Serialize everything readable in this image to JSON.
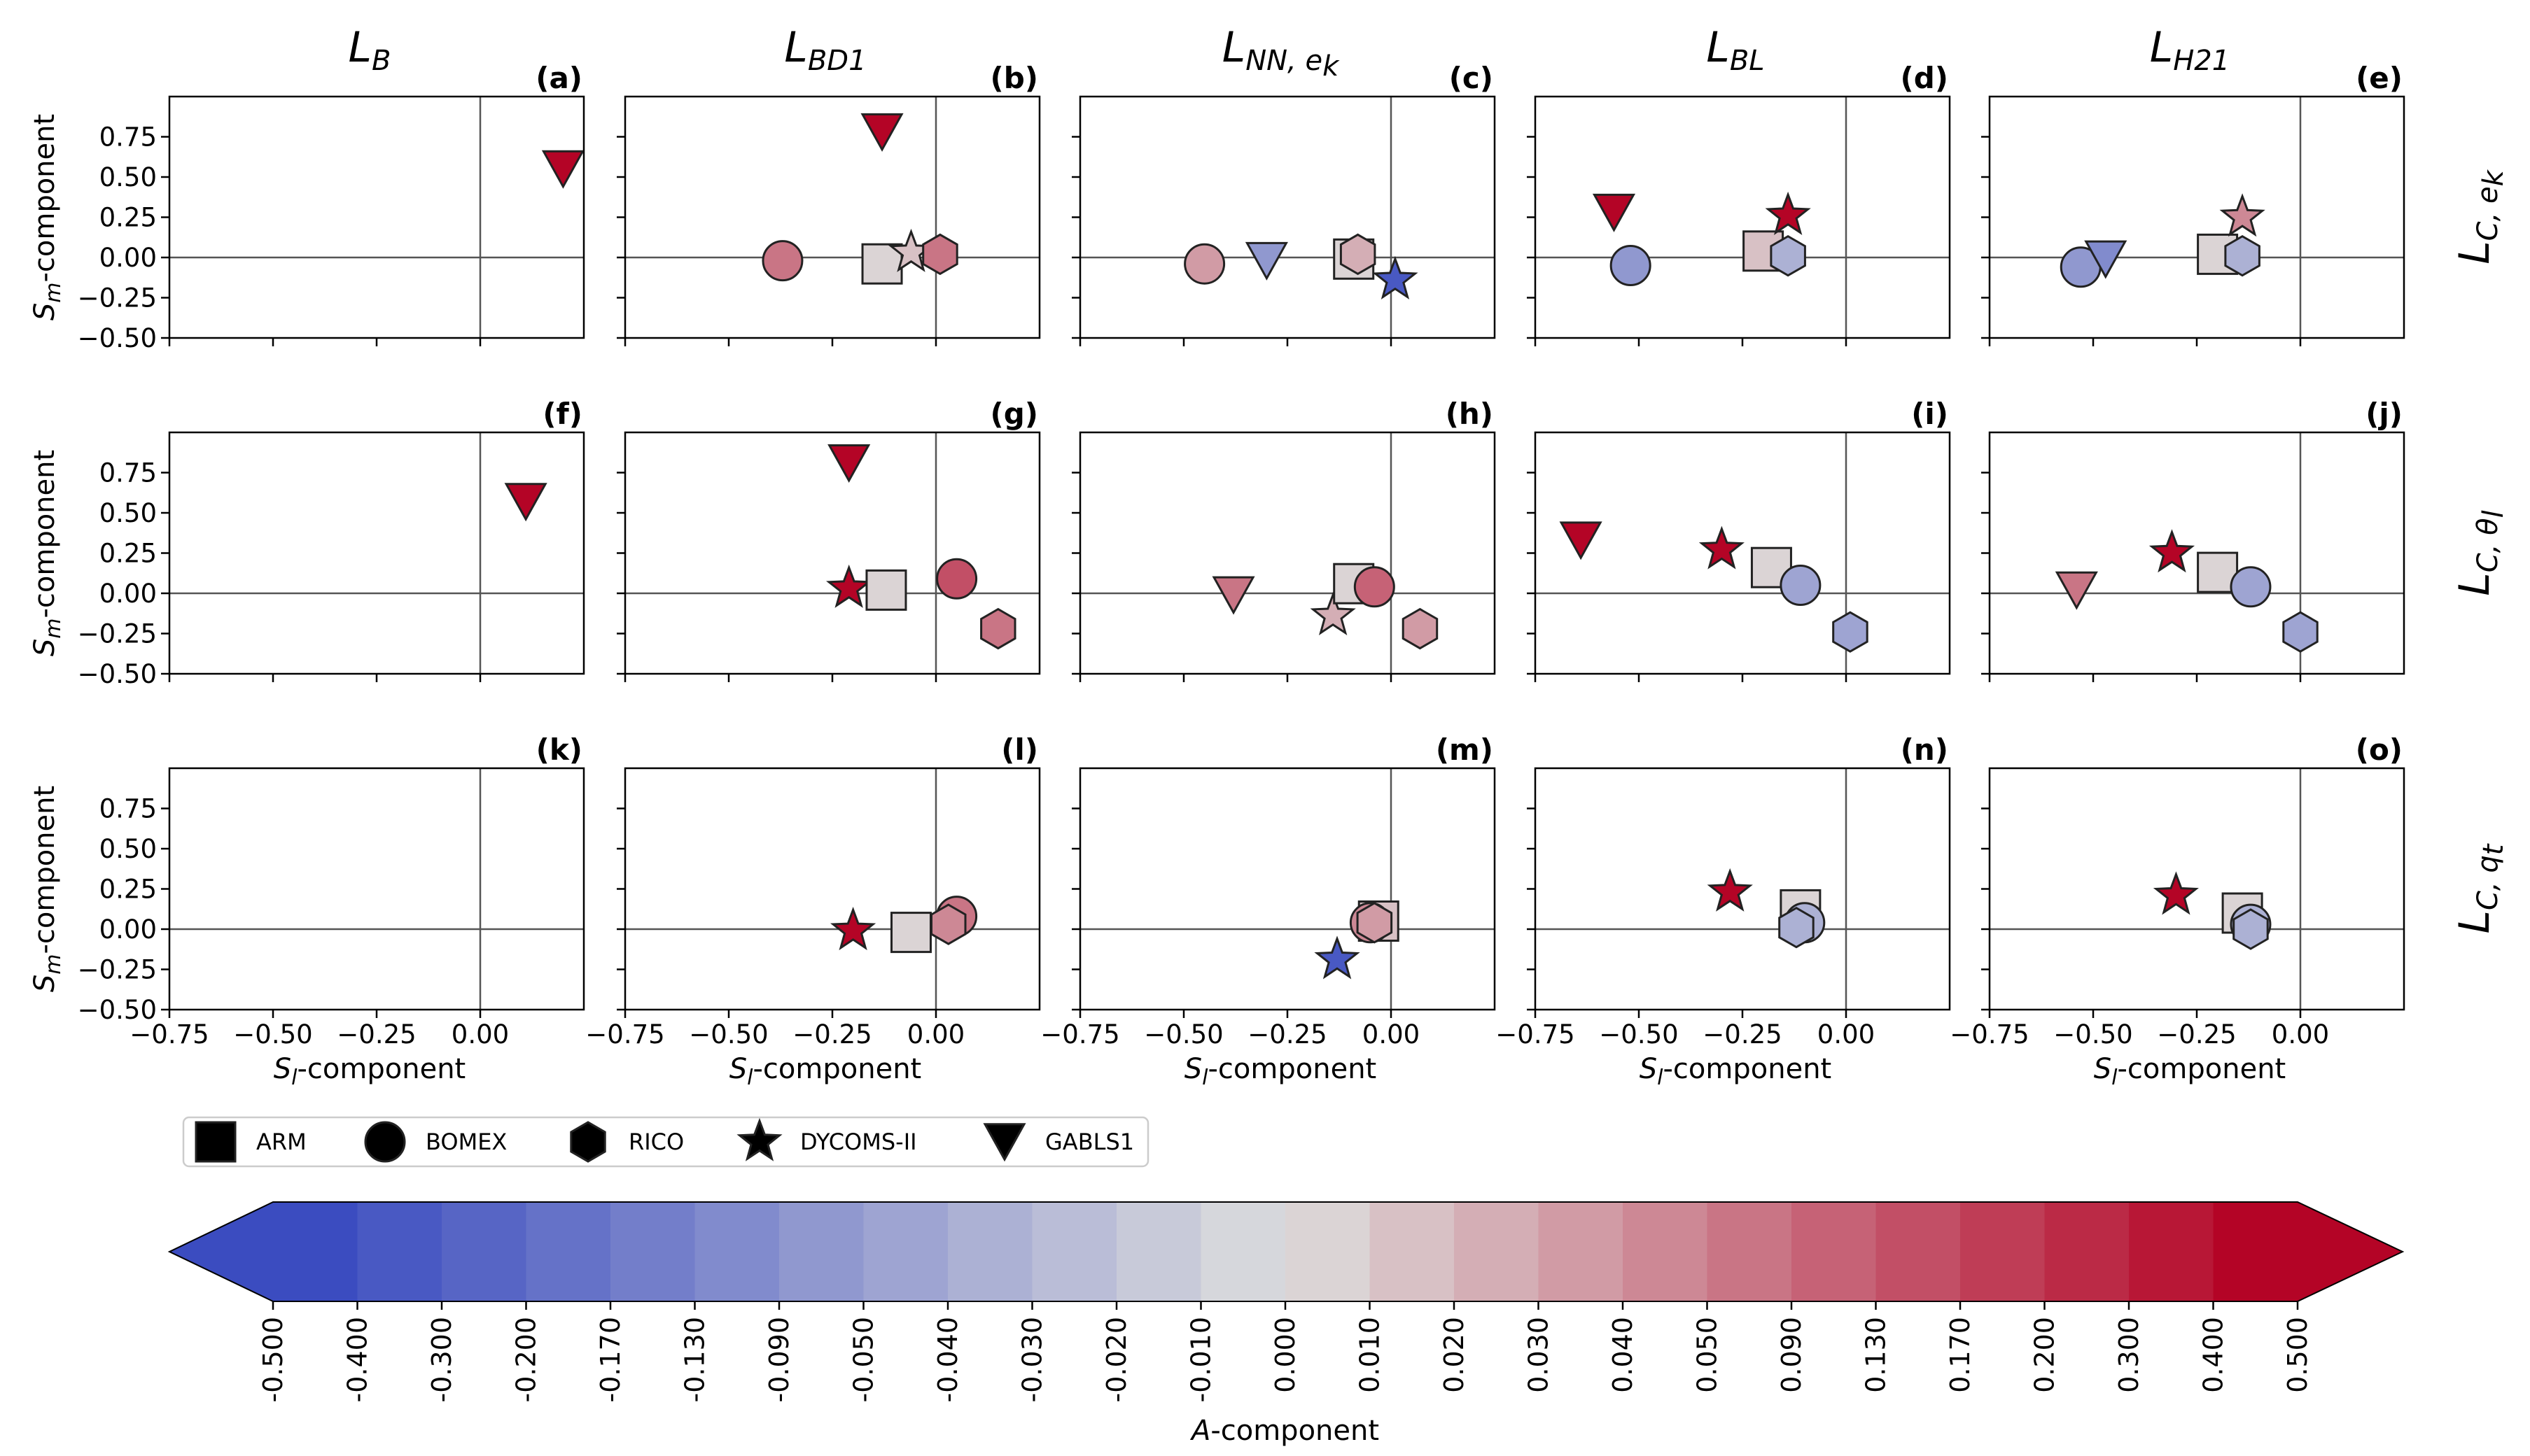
{
  "chart_data": {
    "type": "scatter",
    "description_axes": {
      "xlabel": "S_l-component",
      "ylabel": "S_m-component",
      "xlim": [
        -0.75,
        0.25
      ],
      "ylim": [
        -0.5,
        1.0
      ],
      "xticks": [
        "−0.75",
        "−0.50",
        "−0.25",
        "0.00"
      ],
      "yticks": [
        "−0.50",
        "−0.25",
        "0.00",
        "0.25",
        "0.50",
        "0.75"
      ]
    },
    "xlabel_main": "S",
    "xlabel_sub": "l",
    "xlabel_rest": "-component",
    "ylabel_main": "S",
    "ylabel_sub": "m",
    "ylabel_rest": "-component",
    "columns": [
      {
        "main": "L",
        "sub": "B"
      },
      {
        "main": "L",
        "sub": "BD1"
      },
      {
        "main": "L",
        "sub": "NN, e",
        "subsub": "k"
      },
      {
        "main": "L",
        "sub": "BL"
      },
      {
        "main": "L",
        "sub": "H21"
      }
    ],
    "rows": [
      {
        "main": "L",
        "sub": "C, e",
        "subsub": "k"
      },
      {
        "main": "L",
        "sub": "C, θ",
        "subsub": "l"
      },
      {
        "main": "L",
        "sub": "C, q",
        "subsub": "t"
      }
    ],
    "panel_labels": [
      "(a)",
      "(b)",
      "(c)",
      "(d)",
      "(e)",
      "(f)",
      "(g)",
      "(h)",
      "(i)",
      "(j)",
      "(k)",
      "(l)",
      "(m)",
      "(n)",
      "(o)"
    ],
    "cases": [
      "ARM",
      "BOMEX",
      "RICO",
      "DYCOMS-II",
      "GABLS1"
    ],
    "panels": [
      [
        {
          "case": "GABLS1",
          "sl": 0.2,
          "sm": 0.55,
          "a": 0.5
        }
      ],
      [
        {
          "case": "BOMEX",
          "sl": -0.37,
          "sm": -0.02,
          "a": 0.07
        },
        {
          "case": "ARM",
          "sl": -0.13,
          "sm": -0.04,
          "a": 0.0
        },
        {
          "case": "DYCOMS-II",
          "sl": -0.06,
          "sm": 0.03,
          "a": 0.015
        },
        {
          "case": "RICO",
          "sl": 0.01,
          "sm": 0.02,
          "a": 0.05
        },
        {
          "case": "GABLS1",
          "sl": -0.13,
          "sm": 0.78,
          "a": 0.5
        }
      ],
      [
        {
          "case": "BOMEX",
          "sl": -0.45,
          "sm": -0.04,
          "a": 0.035
        },
        {
          "case": "GABLS1",
          "sl": -0.3,
          "sm": -0.02,
          "a": -0.09
        },
        {
          "case": "ARM",
          "sl": -0.09,
          "sm": -0.01,
          "a": 0.005
        },
        {
          "case": "RICO",
          "sl": -0.08,
          "sm": 0.02,
          "a": 0.02
        },
        {
          "case": "DYCOMS-II",
          "sl": 0.01,
          "sm": -0.14,
          "a": -0.4
        }
      ],
      [
        {
          "case": "GABLS1",
          "sl": -0.56,
          "sm": 0.28,
          "a": 0.5
        },
        {
          "case": "BOMEX",
          "sl": -0.52,
          "sm": -0.05,
          "a": -0.09
        },
        {
          "case": "ARM",
          "sl": -0.2,
          "sm": 0.04,
          "a": 0.01
        },
        {
          "case": "RICO",
          "sl": -0.14,
          "sm": 0.01,
          "a": -0.04
        },
        {
          "case": "DYCOMS-II",
          "sl": -0.14,
          "sm": 0.26,
          "a": 0.4
        }
      ],
      [
        {
          "case": "BOMEX",
          "sl": -0.53,
          "sm": -0.06,
          "a": -0.09
        },
        {
          "case": "GABLS1",
          "sl": -0.47,
          "sm": -0.01,
          "a": -0.13
        },
        {
          "case": "ARM",
          "sl": -0.2,
          "sm": 0.02,
          "a": 0.0
        },
        {
          "case": "RICO",
          "sl": -0.14,
          "sm": 0.01,
          "a": -0.04
        },
        {
          "case": "DYCOMS-II",
          "sl": -0.14,
          "sm": 0.25,
          "a": 0.04
        }
      ],
      [
        {
          "case": "GABLS1",
          "sl": 0.11,
          "sm": 0.57,
          "a": 0.5
        }
      ],
      [
        {
          "case": "GABLS1",
          "sl": -0.21,
          "sm": 0.81,
          "a": 0.5
        },
        {
          "case": "DYCOMS-II",
          "sl": -0.21,
          "sm": 0.03,
          "a": 0.4
        },
        {
          "case": "ARM",
          "sl": -0.12,
          "sm": 0.02,
          "a": 0.0
        },
        {
          "case": "BOMEX",
          "sl": 0.05,
          "sm": 0.09,
          "a": 0.13
        },
        {
          "case": "RICO",
          "sl": 0.15,
          "sm": -0.22,
          "a": 0.06
        }
      ],
      [
        {
          "case": "GABLS1",
          "sl": -0.38,
          "sm": -0.01,
          "a": 0.07
        },
        {
          "case": "DYCOMS-II",
          "sl": -0.14,
          "sm": -0.14,
          "a": 0.02
        },
        {
          "case": "ARM",
          "sl": -0.09,
          "sm": 0.06,
          "a": 0.005
        },
        {
          "case": "BOMEX",
          "sl": -0.04,
          "sm": 0.04,
          "a": 0.09
        },
        {
          "case": "RICO",
          "sl": 0.07,
          "sm": -0.22,
          "a": 0.03
        }
      ],
      [
        {
          "case": "GABLS1",
          "sl": -0.64,
          "sm": 0.33,
          "a": 0.5
        },
        {
          "case": "DYCOMS-II",
          "sl": -0.3,
          "sm": 0.27,
          "a": 0.4
        },
        {
          "case": "ARM",
          "sl": -0.18,
          "sm": 0.16,
          "a": 0.005
        },
        {
          "case": "BOMEX",
          "sl": -0.11,
          "sm": 0.05,
          "a": -0.05
        },
        {
          "case": "RICO",
          "sl": 0.01,
          "sm": -0.24,
          "a": -0.05
        }
      ],
      [
        {
          "case": "GABLS1",
          "sl": -0.54,
          "sm": 0.02,
          "a": 0.06
        },
        {
          "case": "DYCOMS-II",
          "sl": -0.31,
          "sm": 0.25,
          "a": 0.4
        },
        {
          "case": "ARM",
          "sl": -0.2,
          "sm": 0.13,
          "a": 0.005
        },
        {
          "case": "BOMEX",
          "sl": -0.12,
          "sm": 0.04,
          "a": -0.05
        },
        {
          "case": "RICO",
          "sl": 0.0,
          "sm": -0.24,
          "a": -0.05
        }
      ],
      [],
      [
        {
          "case": "DYCOMS-II",
          "sl": -0.2,
          "sm": -0.01,
          "a": 0.4
        },
        {
          "case": "ARM",
          "sl": -0.06,
          "sm": -0.02,
          "a": 0.0
        },
        {
          "case": "BOMEX",
          "sl": 0.05,
          "sm": 0.08,
          "a": 0.07
        },
        {
          "case": "RICO",
          "sl": 0.03,
          "sm": 0.03,
          "a": 0.04
        }
      ],
      [
        {
          "case": "ARM",
          "sl": -0.03,
          "sm": 0.05,
          "a": 0.01
        },
        {
          "case": "BOMEX",
          "sl": -0.05,
          "sm": 0.04,
          "a": 0.04
        },
        {
          "case": "RICO",
          "sl": -0.04,
          "sm": 0.04,
          "a": 0.03
        },
        {
          "case": "DYCOMS-II",
          "sl": -0.13,
          "sm": -0.19,
          "a": -0.4
        }
      ],
      [
        {
          "case": "DYCOMS-II",
          "sl": -0.28,
          "sm": 0.23,
          "a": 0.4
        },
        {
          "case": "ARM",
          "sl": -0.11,
          "sm": 0.12,
          "a": 0.005
        },
        {
          "case": "BOMEX",
          "sl": -0.1,
          "sm": 0.04,
          "a": -0.04
        },
        {
          "case": "RICO",
          "sl": -0.12,
          "sm": 0.01,
          "a": -0.04
        }
      ],
      [
        {
          "case": "DYCOMS-II",
          "sl": -0.3,
          "sm": 0.21,
          "a": 0.4
        },
        {
          "case": "ARM",
          "sl": -0.14,
          "sm": 0.1,
          "a": 0.005
        },
        {
          "case": "BOMEX",
          "sl": -0.12,
          "sm": 0.03,
          "a": -0.04
        },
        {
          "case": "RICO",
          "sl": -0.12,
          "sm": 0.0,
          "a": -0.04
        }
      ]
    ],
    "colorbar": {
      "label_main": "A",
      "label_rest": "-component",
      "boundaries": [
        "-0.500",
        "-0.400",
        "-0.300",
        "-0.200",
        "-0.170",
        "-0.130",
        "-0.090",
        "-0.050",
        "-0.040",
        "-0.030",
        "-0.020",
        "-0.010",
        "0.000",
        "0.010",
        "0.020",
        "0.030",
        "0.040",
        "0.050",
        "0.090",
        "0.130",
        "0.170",
        "0.200",
        "0.300",
        "0.400",
        "0.500"
      ],
      "extend": "both",
      "colormap": "coolwarm",
      "color_low": "#3b4cc0",
      "color_mid": "#dddddd",
      "color_high": "#b40426"
    }
  }
}
